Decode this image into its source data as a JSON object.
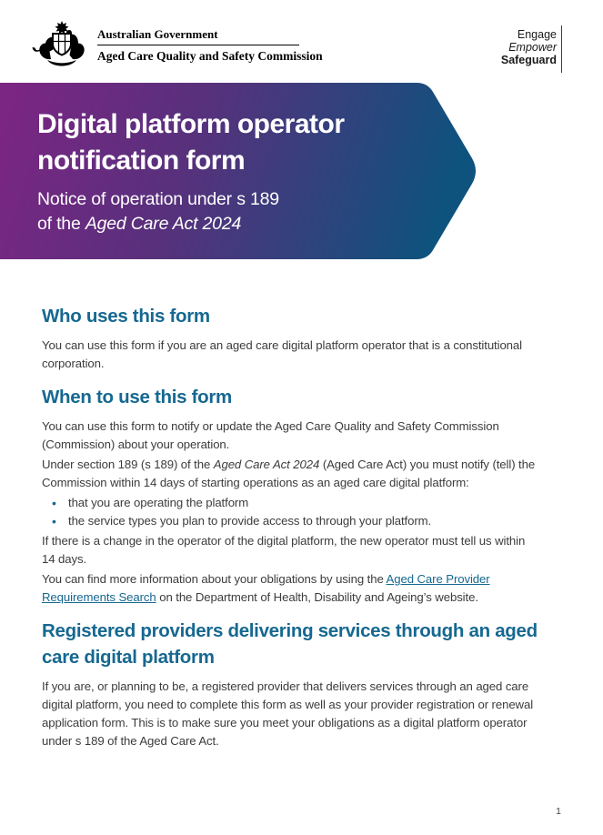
{
  "header": {
    "coat_of_arms_icon": "australian-coat-of-arms",
    "government": "Australian Government",
    "agency": "Aged Care Quality and Safety Commission",
    "tagline": {
      "engage": "Engage",
      "empower": "Empower",
      "safeguard": "Safeguard"
    }
  },
  "banner": {
    "title_line1": "Digital platform operator",
    "title_line2": "notification form",
    "subtitle_line1": "Notice of operation under s 189",
    "subtitle_line2_prefix": "of the ",
    "subtitle_line2_act": "Aged Care Act 2024",
    "colors": {
      "gradient_start": "#7D2583",
      "gradient_end": "#0E527E",
      "text": "#FFFFFF"
    }
  },
  "colors": {
    "heading": "#166890",
    "body_text": "#3C3C3C",
    "link": "#166890",
    "bullet": "#166890"
  },
  "sections": [
    {
      "heading_lines": [
        "Who uses this form"
      ],
      "blocks": [
        {
          "type": "paragraph",
          "lines": [
            [
              {
                "t": "You can use this form if you are an aged care digital platform operator that is a constitutional"
              }
            ],
            [
              {
                "t": "corporation."
              }
            ]
          ]
        }
      ]
    },
    {
      "heading_lines": [
        "When to use this form"
      ],
      "blocks": [
        {
          "type": "paragraph",
          "lines": [
            [
              {
                "t": "You can use this form to notify or update the Aged Care Quality and Safety Commission"
              }
            ],
            [
              {
                "t": "(Commission) about your operation."
              }
            ]
          ]
        },
        {
          "type": "paragraph",
          "lines": [
            [
              {
                "t": "Under section 189 (s 189) of the "
              },
              {
                "t": "Aged Care Act 2024",
                "style": "italic"
              },
              {
                "t": " (Aged Care Act) you must notify (tell) the"
              }
            ],
            [
              {
                "t": "Commission within 14 days of starting operations as an aged care digital platform:"
              }
            ]
          ]
        },
        {
          "type": "bullets",
          "items": [
            "that you are operating the platform",
            "the service types you plan to provide access to through your platform."
          ]
        },
        {
          "type": "paragraph",
          "lines": [
            [
              {
                "t": "If there is a change in the operator of the digital platform, the new operator must tell us within"
              }
            ],
            [
              {
                "t": "14 days."
              }
            ]
          ]
        },
        {
          "type": "paragraph",
          "lines": [
            [
              {
                "t": "You can find more information about your obligations by using the "
              },
              {
                "t": "Aged Care Provider",
                "style": "link"
              }
            ],
            [
              {
                "t": "Requirements Search",
                "style": "link"
              },
              {
                "t": " on the Department of Health, Disability and Ageing’s website."
              }
            ]
          ]
        }
      ]
    },
    {
      "heading_lines": [
        "Registered providers delivering services through an aged",
        "care digital platform"
      ],
      "blocks": [
        {
          "type": "paragraph",
          "lines": [
            [
              {
                "t": "If you are, or planning to be, a registered provider that delivers services through an aged care"
              }
            ],
            [
              {
                "t": "digital platform, you need to complete this form as well as your provider registration or renewal"
              }
            ],
            [
              {
                "t": "application form. This is to make sure you meet your obligations as a digital platform operator"
              }
            ],
            [
              {
                "t": "under s 189 of the Aged Care Act."
              }
            ]
          ]
        }
      ]
    }
  ],
  "footer": {
    "page_number": "1"
  }
}
